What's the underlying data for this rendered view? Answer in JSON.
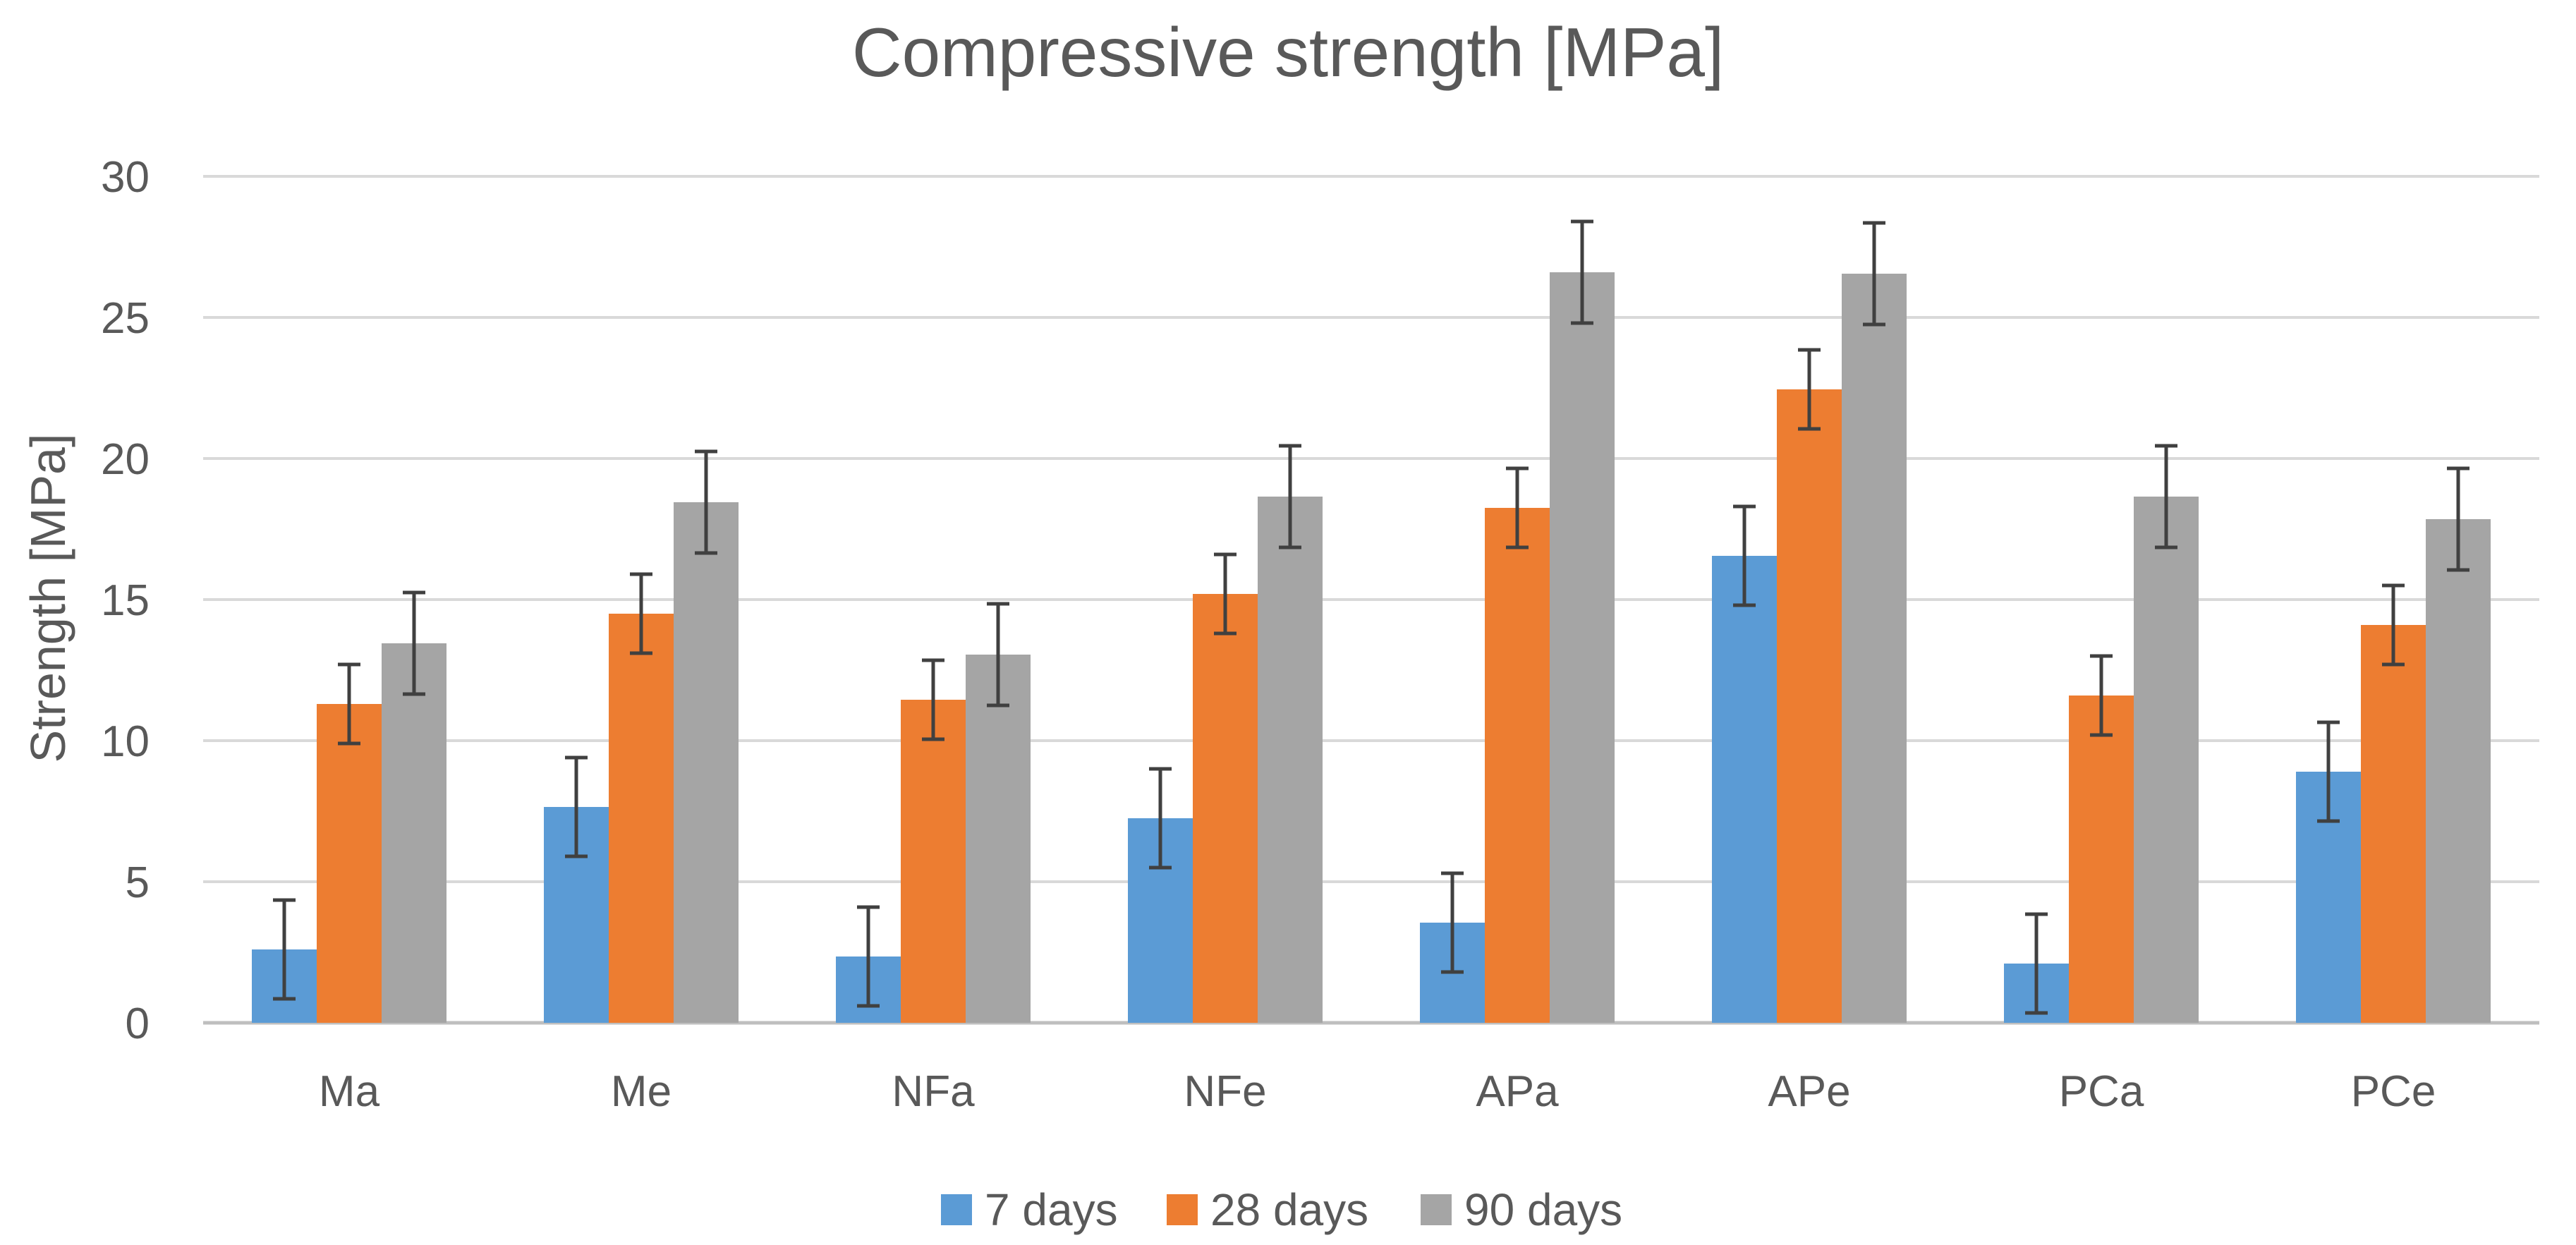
{
  "chart_data": {
    "type": "bar",
    "title": "Compressive strength [MPa]",
    "xlabel": "",
    "ylabel": "Strength [MPa]",
    "ylim": [
      0,
      30
    ],
    "yticks": [
      0,
      5,
      10,
      15,
      20,
      25,
      30
    ],
    "grid": true,
    "legend_position": "bottom",
    "categories": [
      "Ma",
      "Me",
      "NFa",
      "NFe",
      "APa",
      "APe",
      "PCa",
      "PCe"
    ],
    "series": [
      {
        "name": "7 days",
        "color": "#5b9bd5",
        "values": [
          2.6,
          7.65,
          2.35,
          7.25,
          3.55,
          16.55,
          2.1,
          8.9
        ],
        "error": [
          1.75,
          1.75,
          1.75,
          1.75,
          1.75,
          1.75,
          1.75,
          1.75
        ]
      },
      {
        "name": "28 days",
        "color": "#ed7d31",
        "values": [
          11.3,
          14.5,
          11.45,
          15.2,
          18.25,
          22.45,
          11.6,
          14.1
        ],
        "error": [
          1.4,
          1.4,
          1.4,
          1.4,
          1.4,
          1.4,
          1.4,
          1.4
        ]
      },
      {
        "name": "90 days",
        "color": "#a5a5a5",
        "values": [
          13.45,
          18.45,
          13.05,
          18.65,
          26.6,
          26.55,
          18.65,
          17.85
        ],
        "error": [
          1.8,
          1.8,
          1.8,
          1.8,
          1.8,
          1.8,
          1.8,
          1.8
        ]
      }
    ]
  }
}
